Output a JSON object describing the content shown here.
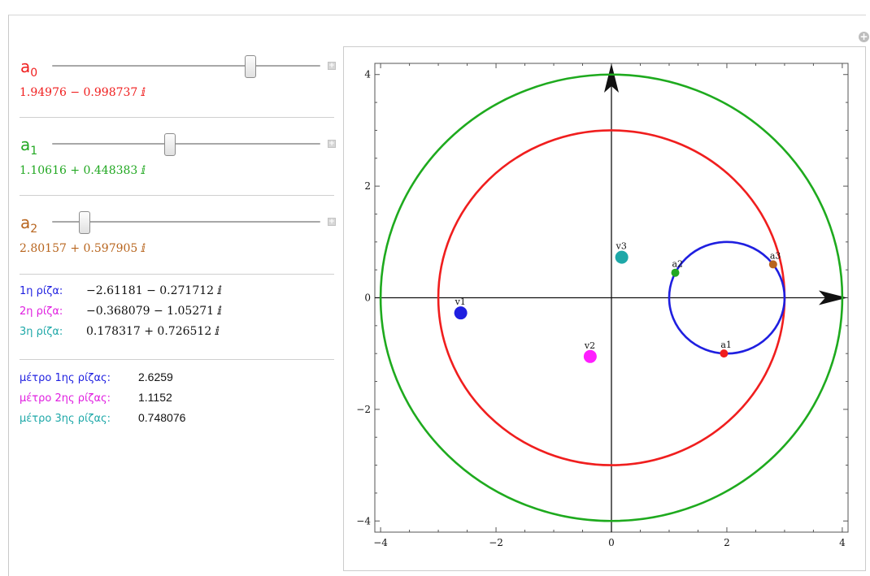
{
  "sliders": [
    {
      "label": "a",
      "sub": "0",
      "value": "1.94976 − 0.998737 ⅈ",
      "color": "#f01e1e",
      "thumb_fraction": 0.74
    },
    {
      "label": "a",
      "sub": "1",
      "value": "1.10616 + 0.448383 ⅈ",
      "color": "#22a822",
      "thumb_fraction": 0.44
    },
    {
      "label": "a",
      "sub": "2",
      "value": "2.80157 + 0.597905 ⅈ",
      "color": "#b8651e",
      "thumb_fraction": 0.12
    }
  ],
  "roots": [
    {
      "label": "1η ρίζα:",
      "value": "−2.61181 − 0.271712 ⅈ",
      "color": "#1f1fe0"
    },
    {
      "label": "2η ρίζα:",
      "value": "−0.368079 − 1.05271 ⅈ",
      "color": "#e01ee0"
    },
    {
      "label": "3η ρίζα:",
      "value": "0.178317 + 0.726512 ⅈ",
      "color": "#1ea8a8"
    }
  ],
  "moduli": [
    {
      "label": "μέτρο 1ης ρίζας:",
      "value": "2.6259",
      "color": "#1f1fe0"
    },
    {
      "label": "μέτρο 2ης ρίζας:",
      "value": "1.1152",
      "color": "#e01ee0"
    },
    {
      "label": "μέτρο 3ης ρίζας:",
      "value": "0.748076",
      "color": "#1ea8a8"
    }
  ],
  "chart_data": {
    "type": "scatter",
    "xlim": [
      -4.1,
      4.1
    ],
    "ylim": [
      -4.2,
      4.2
    ],
    "x_ticks": [
      "−4",
      "−2",
      "0",
      "2",
      "4"
    ],
    "y_ticks": [
      "4",
      "2",
      "0",
      "−2",
      "−4"
    ],
    "x_tick_values": [
      -4,
      -2,
      0,
      2,
      4
    ],
    "y_tick_values": [
      4,
      2,
      0,
      -2,
      -4
    ],
    "circles": [
      {
        "cx": 0,
        "cy": 0,
        "r": 4,
        "color": "#1eaa1e"
      },
      {
        "cx": 0,
        "cy": 0,
        "r": 3,
        "color": "#f01e1e"
      },
      {
        "cx": 2,
        "cy": 0,
        "r": 1,
        "color": "#1f1fe0"
      }
    ],
    "points": [
      {
        "name": "v1",
        "x": -2.61181,
        "y": -0.271712,
        "color": "#1f1fe0",
        "size": "large"
      },
      {
        "name": "v2",
        "x": -0.368079,
        "y": -1.05271,
        "color": "#ff1eff",
        "size": "large"
      },
      {
        "name": "v3",
        "x": 0.178317,
        "y": 0.726512,
        "color": "#1ea8a8",
        "size": "large"
      },
      {
        "name": "a1",
        "x": 1.94976,
        "y": -0.998737,
        "color": "#f01e1e",
        "size": "small"
      },
      {
        "name": "a2",
        "x": 1.10616,
        "y": 0.448383,
        "color": "#22a822",
        "size": "small"
      },
      {
        "name": "a3",
        "x": 2.80157,
        "y": 0.597905,
        "color": "#b8651e",
        "size": "small"
      }
    ],
    "axes_arrows": true
  }
}
